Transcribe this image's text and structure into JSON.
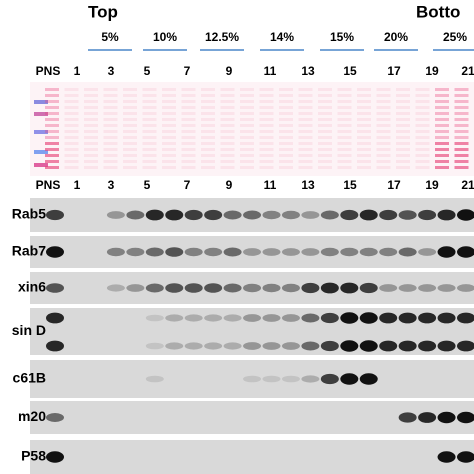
{
  "header": {
    "top": "Top",
    "bottom": "Botto",
    "percentages": [
      "5%",
      "10%",
      "12.5%",
      "14%",
      "15%",
      "20%",
      "25%"
    ]
  },
  "lanes_top": [
    "PNS",
    "1",
    "3",
    "5",
    "7",
    "9",
    "11",
    "13",
    "15",
    "17",
    "19",
    "21"
  ],
  "lanes_blot": [
    "PNS",
    "1",
    "3",
    "5",
    "7",
    "9",
    "11",
    "13",
    "15",
    "17",
    "19",
    "21"
  ],
  "blots": [
    {
      "label": "Rab5"
    },
    {
      "label": "Rab7"
    },
    {
      "label": "xin6"
    },
    {
      "label": "sin D"
    },
    {
      "label": "c61B"
    },
    {
      "label": "m20"
    },
    {
      "label": "P58"
    }
  ]
}
